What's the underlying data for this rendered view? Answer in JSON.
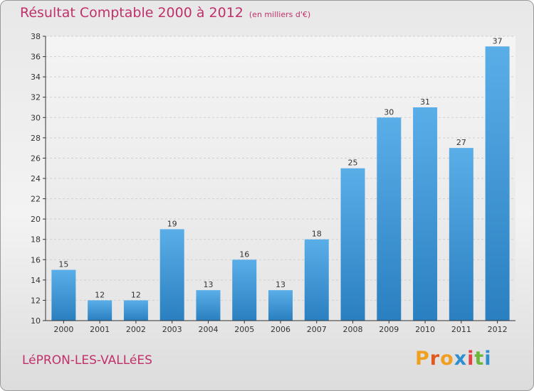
{
  "page": {
    "title": "Résultat Comptable 2000 à 2012",
    "subtitle": "(en milliers d'€)",
    "town": "LéPRON-LES-VALLéES",
    "brand": [
      "P",
      "r",
      "o",
      "x",
      "i",
      "t",
      "i"
    ]
  },
  "colors": {
    "title": "#c0306a",
    "bar_top": "#5aaee8",
    "bar_bottom": "#2a7fc0",
    "axis": "#333333"
  },
  "chart_data": {
    "type": "bar",
    "title": "Résultat Comptable 2000 à 2012",
    "subtitle": "(en milliers d'€)",
    "xlabel": "",
    "ylabel": "",
    "categories": [
      "2000",
      "2001",
      "2002",
      "2003",
      "2004",
      "2005",
      "2006",
      "2007",
      "2008",
      "2009",
      "2010",
      "2011",
      "2012"
    ],
    "values": [
      15,
      12,
      12,
      19,
      13,
      16,
      13,
      18,
      25,
      30,
      31,
      27,
      37
    ],
    "ylim": [
      10,
      38
    ],
    "yticks": [
      10,
      12,
      14,
      16,
      18,
      20,
      22,
      24,
      26,
      28,
      30,
      32,
      34,
      36,
      38
    ],
    "grid": true
  }
}
